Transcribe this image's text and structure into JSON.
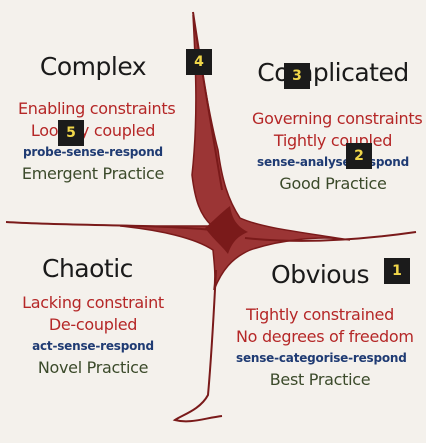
{
  "colors": {
    "curve": "#7a1a1a",
    "fill": "#9b3535",
    "red_text": "#b52727",
    "blue_text": "#1f3b73",
    "green_text": "#3b4a2a",
    "badge_bg": "#1b1b1b",
    "badge_fg": "#f1d74a"
  },
  "complex": {
    "title": "Complex",
    "constraint": "Enabling constraints",
    "coupling": "Loosely coupled",
    "approach": "probe-sense-respond",
    "practice": "Emergent Practice"
  },
  "complicated": {
    "title": "Complicated",
    "constraint": "Governing constraints",
    "coupling": "Tightly coupled",
    "approach": "sense-analyse-respond",
    "practice": "Good Practice"
  },
  "chaotic": {
    "title": "Chaotic",
    "constraint": "Lacking constraint",
    "coupling": "De-coupled",
    "approach": "act-sense-respond",
    "practice": "Novel Practice"
  },
  "obvious": {
    "title": "Obvious",
    "constraint": "Tightly constrained",
    "coupling": "No degrees of freedom",
    "approach": "sense-categorise-respond",
    "practice": "Best Practice"
  },
  "badges": [
    "1",
    "2",
    "3",
    "4",
    "5"
  ]
}
